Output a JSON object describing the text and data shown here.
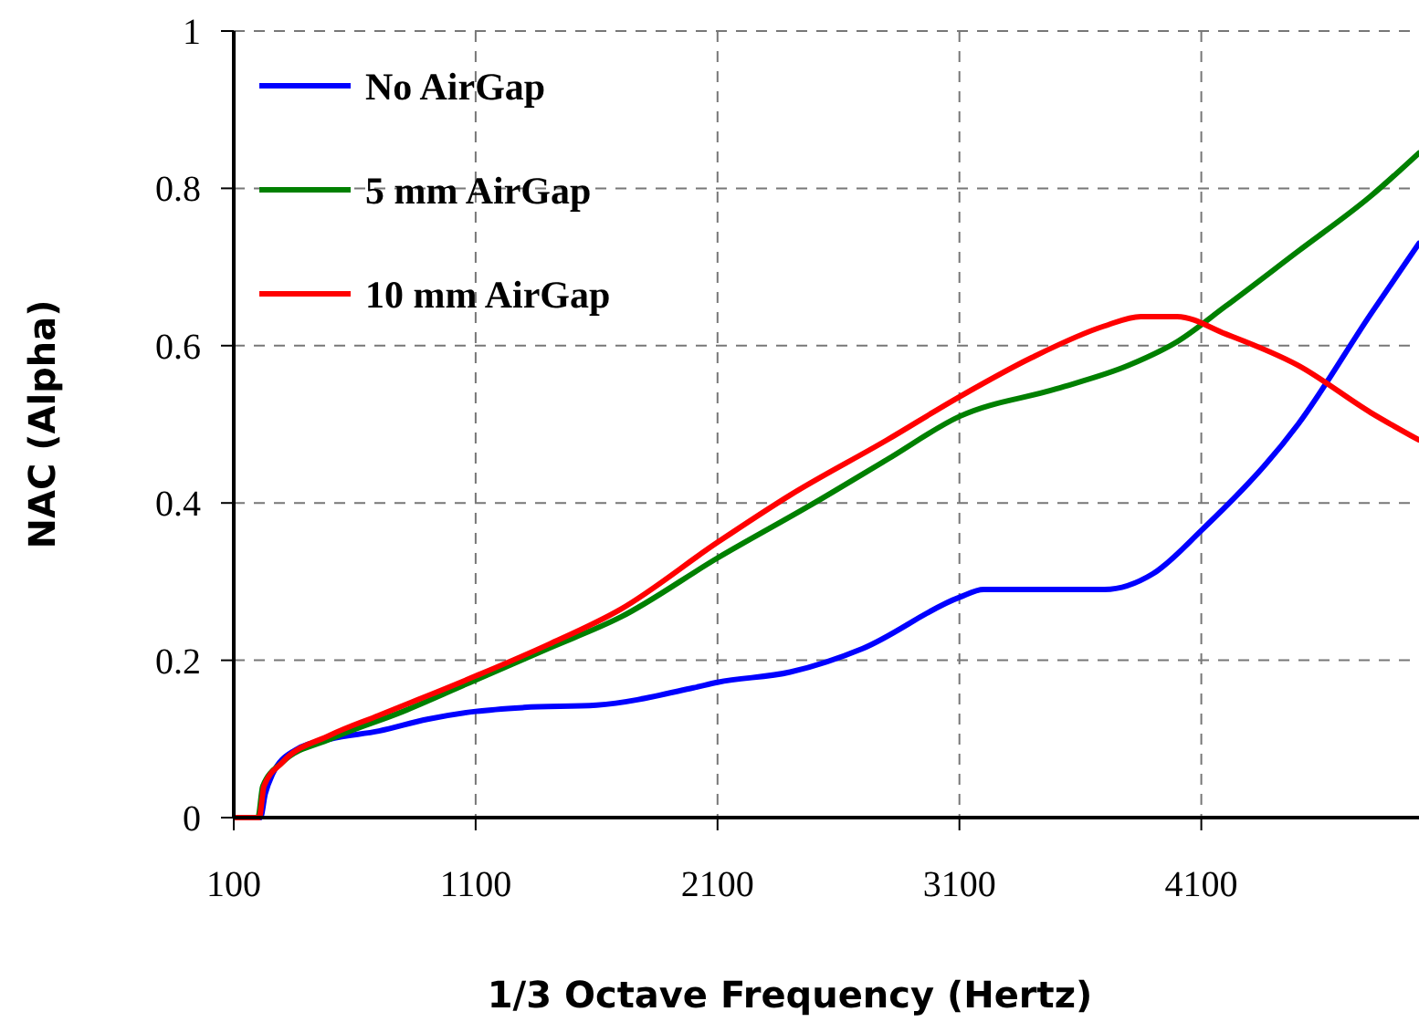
{
  "chart_data": {
    "type": "line",
    "xlabel": "1/3 Octave Frequency (Hertz)",
    "ylabel": "NAC (Alpha)",
    "xlim": [
      100,
      5000
    ],
    "ylim": [
      0,
      1
    ],
    "xticks": [
      100,
      1100,
      2100,
      3100,
      4100
    ],
    "yticks": [
      0,
      0.2,
      0.4,
      0.6,
      0.8,
      1
    ],
    "grid": true,
    "legend": "top left",
    "marker": "none",
    "line_style": "solid",
    "series": [
      {
        "name": "No AirGap",
        "color": "#0000ff",
        "x": [
          100,
          210,
          230,
          260,
          350,
          500,
          700,
          900,
          1100,
          1300,
          1600,
          2000,
          2100,
          2400,
          2700,
          3100,
          3200,
          3700,
          3900,
          4100,
          4500,
          4800,
          5000
        ],
        "values": [
          0,
          0,
          0.03,
          0.055,
          0.085,
          0.1,
          0.11,
          0.125,
          0.135,
          0.14,
          0.143,
          0.165,
          0.172,
          0.185,
          0.215,
          0.28,
          0.29,
          0.29,
          0.31,
          0.365,
          0.5,
          0.64,
          0.73
        ]
      },
      {
        "name": "5 mm AirGap",
        "color": "#008000",
        "x": [
          100,
          200,
          220,
          300,
          500,
          800,
          1100,
          1400,
          1700,
          2100,
          2500,
          2800,
          3100,
          3500,
          3800,
          4000,
          4200,
          4500,
          4800,
          5000
        ],
        "values": [
          0,
          0,
          0.04,
          0.07,
          0.1,
          0.135,
          0.175,
          0.215,
          0.255,
          0.33,
          0.4,
          0.455,
          0.51,
          0.545,
          0.575,
          0.605,
          0.65,
          0.72,
          0.79,
          0.845
        ]
      },
      {
        "name": "10 mm AirGap",
        "color": "#ff0000",
        "x": [
          100,
          205,
          225,
          300,
          500,
          700,
          1100,
          1400,
          1700,
          2100,
          2400,
          2800,
          3100,
          3400,
          3700,
          3850,
          4000,
          4200,
          4500,
          4800,
          5000
        ],
        "values": [
          0,
          0,
          0.04,
          0.07,
          0.105,
          0.13,
          0.18,
          0.22,
          0.265,
          0.35,
          0.41,
          0.48,
          0.535,
          0.585,
          0.625,
          0.637,
          0.637,
          0.615,
          0.575,
          0.515,
          0.48
        ]
      }
    ]
  }
}
